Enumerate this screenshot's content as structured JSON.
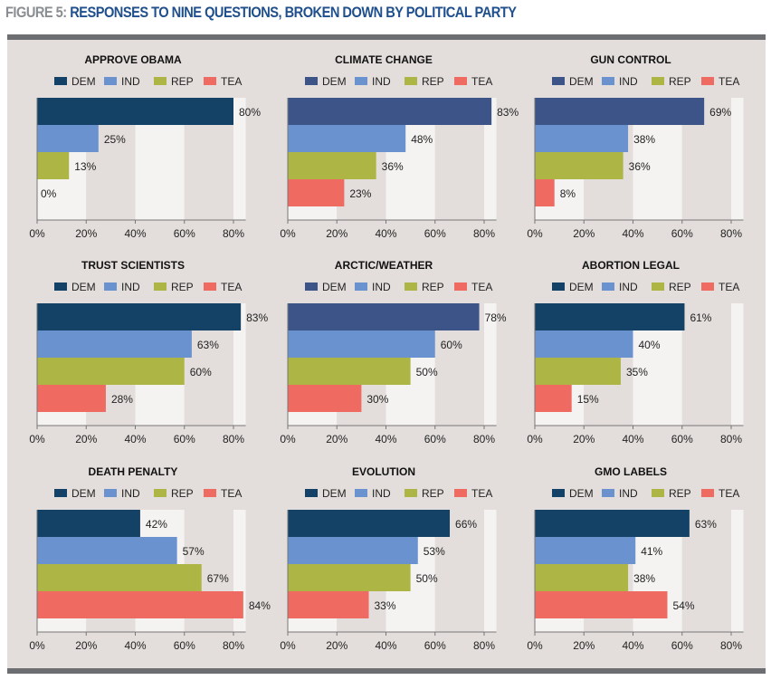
{
  "figure": {
    "label": "FIGURE 5:",
    "title": "RESPONSES TO NINE QUESTIONS, BROKEN DOWN BY POLITICAL PARTY"
  },
  "colors": {
    "dem_navy": "#134266",
    "dem_slate": "#3c5488",
    "ind": "#6a92cf",
    "rep": "#adb544",
    "tea": "#ef6a60",
    "band_light": "#f4f3f2",
    "band_dark": "#e3dedb"
  },
  "chart_data": [
    {
      "type": "bar",
      "orientation": "horizontal",
      "title": "APPROVE OBAMA",
      "categories": [
        "DEM",
        "IND",
        "REP",
        "TEA"
      ],
      "values": [
        80,
        25,
        13,
        0
      ],
      "labels": [
        "80%",
        "25%",
        "13%",
        "0%"
      ],
      "dem_color": "#134266",
      "xlim": [
        0,
        85
      ],
      "xticks": [
        "0%",
        "20%",
        "40%",
        "60%",
        "80%"
      ],
      "legend": "top"
    },
    {
      "type": "bar",
      "orientation": "horizontal",
      "title": "CLIMATE CHANGE",
      "categories": [
        "DEM",
        "IND",
        "REP",
        "TEA"
      ],
      "values": [
        83,
        48,
        36,
        23
      ],
      "labels": [
        "83%",
        "48%",
        "36%",
        "23%"
      ],
      "dem_color": "#3c5488",
      "xlim": [
        0,
        85
      ],
      "xticks": [
        "0%",
        "20%",
        "40%",
        "60%",
        "80%"
      ],
      "legend": "top"
    },
    {
      "type": "bar",
      "orientation": "horizontal",
      "title": "GUN CONTROL",
      "categories": [
        "DEM",
        "IND",
        "REP",
        "TEA"
      ],
      "values": [
        69,
        38,
        36,
        8
      ],
      "labels": [
        "69%",
        "38%",
        "36%",
        "8%"
      ],
      "dem_color": "#3c5488",
      "xlim": [
        0,
        85
      ],
      "xticks": [
        "0%",
        "20%",
        "40%",
        "60%",
        "80%"
      ],
      "legend": "top"
    },
    {
      "type": "bar",
      "orientation": "horizontal",
      "title": "TRUST SCIENTISTS",
      "categories": [
        "DEM",
        "IND",
        "REP",
        "TEA"
      ],
      "values": [
        83,
        63,
        60,
        28
      ],
      "labels": [
        "83%",
        "63%",
        "60%",
        "28%"
      ],
      "dem_color": "#134266",
      "xlim": [
        0,
        85
      ],
      "xticks": [
        "0%",
        "20%",
        "40%",
        "60%",
        "80%"
      ],
      "legend": "top"
    },
    {
      "type": "bar",
      "orientation": "horizontal",
      "title": "ARCTIC/WEATHER",
      "categories": [
        "DEM",
        "IND",
        "REP",
        "TEA"
      ],
      "values": [
        78,
        60,
        50,
        30
      ],
      "labels": [
        "78%",
        "60%",
        "50%",
        "30%"
      ],
      "dem_color": "#3c5488",
      "xlim": [
        0,
        85
      ],
      "xticks": [
        "0%",
        "20%",
        "40%",
        "60%",
        "80%"
      ],
      "legend": "top"
    },
    {
      "type": "bar",
      "orientation": "horizontal",
      "title": "ABORTION LEGAL",
      "categories": [
        "DEM",
        "IND",
        "REP",
        "TEA"
      ],
      "values": [
        61,
        40,
        35,
        15
      ],
      "labels": [
        "61%",
        "40%",
        "35%",
        "15%"
      ],
      "dem_color": "#134266",
      "xlim": [
        0,
        85
      ],
      "xticks": [
        "0%",
        "20%",
        "40%",
        "60%",
        "80%"
      ],
      "legend": "top"
    },
    {
      "type": "bar",
      "orientation": "horizontal",
      "title": "DEATH PENALTY",
      "categories": [
        "DEM",
        "IND",
        "REP",
        "TEA"
      ],
      "values": [
        42,
        57,
        67,
        84
      ],
      "labels": [
        "42%",
        "57%",
        "67%",
        "84%"
      ],
      "dem_color": "#134266",
      "xlim": [
        0,
        85
      ],
      "xticks": [
        "0%",
        "20%",
        "40%",
        "60%",
        "80%"
      ],
      "legend": "top"
    },
    {
      "type": "bar",
      "orientation": "horizontal",
      "title": "EVOLUTION",
      "categories": [
        "DEM",
        "IND",
        "REP",
        "TEA"
      ],
      "values": [
        66,
        53,
        50,
        33
      ],
      "labels": [
        "66%",
        "53%",
        "50%",
        "33%"
      ],
      "dem_color": "#134266",
      "xlim": [
        0,
        85
      ],
      "xticks": [
        "0%",
        "20%",
        "40%",
        "60%",
        "80%"
      ],
      "legend": "top"
    },
    {
      "type": "bar",
      "orientation": "horizontal",
      "title": "GMO LABELS",
      "categories": [
        "DEM",
        "IND",
        "REP",
        "TEA"
      ],
      "values": [
        63,
        41,
        38,
        54
      ],
      "labels": [
        "63%",
        "41%",
        "38%",
        "54%"
      ],
      "dem_color": "#134266",
      "xlim": [
        0,
        85
      ],
      "xticks": [
        "0%",
        "20%",
        "40%",
        "60%",
        "80%"
      ],
      "legend": "top"
    }
  ]
}
